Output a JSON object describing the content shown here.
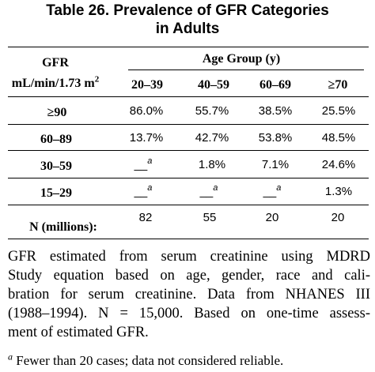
{
  "title_line1": "Table 26. Prevalence of GFR Categories",
  "title_line2": "in Adults",
  "header": {
    "gfr_label_1": "GFR",
    "gfr_label_2": "mL/min/1.73 m",
    "gfr_label_sup": "2",
    "age_group": "Age Group (y)",
    "columns": [
      "20–39",
      "40–59",
      "60–69",
      "≥70"
    ]
  },
  "rows": [
    {
      "label": "≥90",
      "cells": [
        {
          "value": "86.0%",
          "mark": ""
        },
        {
          "value": "55.7%",
          "mark": ""
        },
        {
          "value": "38.5%",
          "mark": ""
        },
        {
          "value": "25.5%",
          "mark": ""
        }
      ]
    },
    {
      "label": "60–89",
      "cells": [
        {
          "value": "13.7%",
          "mark": ""
        },
        {
          "value": "42.7%",
          "mark": ""
        },
        {
          "value": "53.8%",
          "mark": ""
        },
        {
          "value": "48.5%",
          "mark": ""
        }
      ]
    },
    {
      "label": "30–59",
      "cells": [
        {
          "value": "__",
          "mark": "a"
        },
        {
          "value": "1.8%",
          "mark": ""
        },
        {
          "value": "7.1%",
          "mark": ""
        },
        {
          "value": "24.6%",
          "mark": ""
        }
      ]
    },
    {
      "label": "15–29",
      "cells": [
        {
          "value": "__",
          "mark": "a"
        },
        {
          "value": "__",
          "mark": "a"
        },
        {
          "value": "__",
          "mark": "a"
        },
        {
          "value": "1.3%",
          "mark": ""
        }
      ]
    },
    {
      "label": "N (millions):",
      "cells": [
        {
          "value": "82",
          "mark": ""
        },
        {
          "value": "55",
          "mark": ""
        },
        {
          "value": "20",
          "mark": ""
        },
        {
          "value": "20",
          "mark": ""
        }
      ]
    }
  ],
  "note_lines": [
    "GFR estimated from serum creatinine using MDRD",
    "Study equation based on age, gender, race and cali-",
    "bration for serum creatinine. Data from NHANES III",
    "(1988–1994). N = 15,000. Based on one-time assess-",
    "ment of estimated GFR."
  ],
  "footnote_mark": "a",
  "footnote_text": " Fewer than 20 cases; data not considered reliable."
}
